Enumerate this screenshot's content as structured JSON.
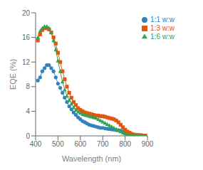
{
  "chart_data": {
    "type": "line",
    "title": "",
    "xlabel": "Wavelength (nm)",
    "ylabel": "EQE (%)",
    "xlim": [
      400,
      900
    ],
    "ylim": [
      0,
      20
    ],
    "xticks": [
      400,
      500,
      600,
      700,
      800,
      900
    ],
    "yticks": [
      0,
      4,
      8,
      12,
      16,
      20
    ],
    "legend": "upper right",
    "grid": false,
    "x": [
      410,
      420,
      430,
      440,
      450,
      460,
      470,
      480,
      490,
      500,
      510,
      520,
      530,
      540,
      550,
      560,
      570,
      580,
      590,
      600,
      610,
      620,
      630,
      640,
      650,
      660,
      670,
      680,
      690,
      700,
      710,
      720,
      730,
      740,
      750,
      760,
      770,
      780,
      790,
      800,
      810,
      820,
      830,
      840,
      850,
      860,
      870,
      880,
      890
    ],
    "series": [
      {
        "name": "1:1 w:w",
        "color": "#3182bd",
        "marker": "circle",
        "values": [
          9.0,
          9.5,
          10.5,
          11.0,
          11.5,
          11.5,
          11.0,
          10.5,
          9.5,
          8.5,
          7.8,
          7.0,
          6.2,
          5.5,
          4.8,
          4.3,
          3.8,
          3.4,
          3.0,
          2.7,
          2.4,
          2.2,
          2.0,
          1.8,
          1.7,
          1.6,
          1.5,
          1.4,
          1.3,
          1.3,
          1.2,
          1.15,
          1.1,
          1.05,
          1.0,
          0.95,
          0.9,
          0.85,
          0.8,
          0.75,
          0.5,
          0.4,
          0.3,
          0.2,
          0.15,
          0.1,
          0.1,
          0.05,
          0.05
        ]
      },
      {
        "name": "1:3 w:w",
        "color": "#e6550d",
        "marker": "square",
        "values": [
          15.5,
          16.5,
          17.2,
          17.5,
          17.5,
          17.3,
          16.8,
          16.0,
          15.0,
          13.5,
          12.0,
          10.5,
          9.2,
          8.0,
          7.0,
          6.2,
          5.5,
          5.0,
          4.5,
          4.2,
          4.0,
          3.8,
          3.7,
          3.6,
          3.5,
          3.4,
          3.3,
          3.3,
          3.2,
          3.2,
          3.1,
          3.0,
          2.9,
          2.8,
          2.7,
          2.5,
          2.2,
          1.8,
          1.4,
          1.0,
          0.7,
          0.5,
          0.3,
          0.2,
          0.15,
          0.1,
          0.1,
          0.05,
          0.05
        ]
      },
      {
        "name": "1:6 w:w",
        "color": "#31a354",
        "marker": "triangle",
        "values": [
          16.0,
          17.0,
          17.5,
          17.8,
          17.8,
          17.5,
          16.8,
          15.5,
          14.0,
          12.2,
          10.5,
          8.8,
          7.5,
          6.5,
          5.8,
          5.2,
          4.6,
          4.2,
          3.9,
          3.7,
          3.5,
          3.4,
          3.3,
          3.2,
          3.1,
          3.0,
          2.9,
          2.7,
          2.5,
          2.3,
          2.1,
          1.9,
          1.7,
          1.5,
          1.3,
          1.1,
          0.9,
          0.7,
          0.5,
          0.35,
          0.2,
          0.15,
          0.1,
          0.08,
          0.05,
          0.03,
          0.02,
          0.01,
          0.01
        ]
      }
    ]
  }
}
